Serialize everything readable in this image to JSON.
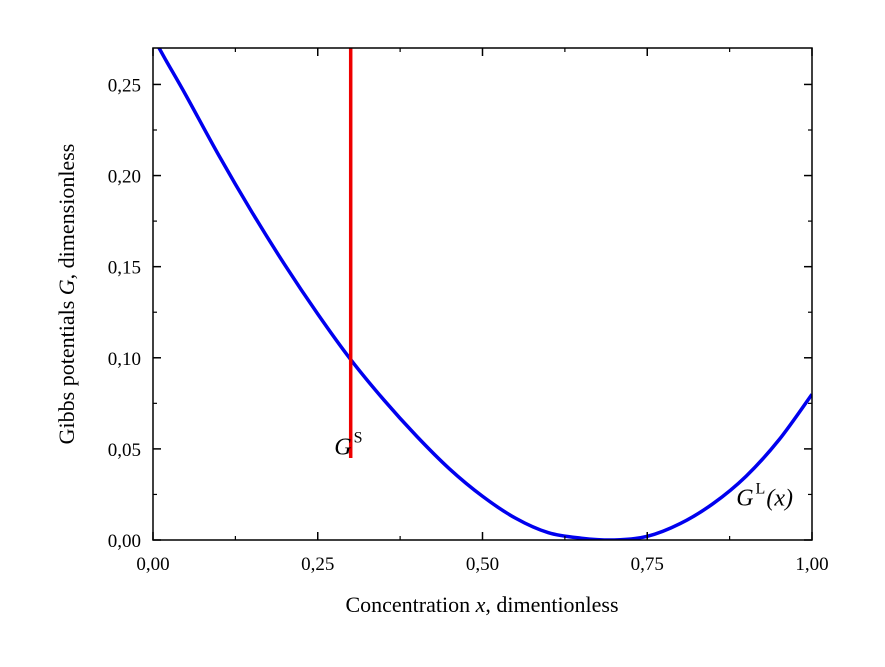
{
  "chart_data": {
    "type": "line",
    "title": "",
    "xlabel": {
      "prefix": "Concentration ",
      "var": "x",
      "suffix": ", dimentionless"
    },
    "ylabel": {
      "prefix": "Gibbs potentials ",
      "var": "G",
      "suffix": ", dimensionless"
    },
    "xlim": [
      0,
      1
    ],
    "ylim": [
      0,
      0.27
    ],
    "x_ticks": [
      {
        "value": 0,
        "label": "0,00"
      },
      {
        "value": 0.25,
        "label": "0,25"
      },
      {
        "value": 0.5,
        "label": "0,50"
      },
      {
        "value": 0.75,
        "label": "0,75"
      },
      {
        "value": 1,
        "label": "1,00"
      }
    ],
    "y_ticks": [
      {
        "value": 0,
        "label": "0,00"
      },
      {
        "value": 0.05,
        "label": "0,05"
      },
      {
        "value": 0.1,
        "label": "0,10"
      },
      {
        "value": 0.15,
        "label": "0,15"
      },
      {
        "value": 0.2,
        "label": "0,20"
      },
      {
        "value": 0.25,
        "label": "0,25"
      }
    ],
    "grid": false,
    "series": [
      {
        "color": "#0000ee",
        "x": [
          0.0,
          0.02,
          0.05,
          0.1,
          0.15,
          0.2,
          0.25,
          0.3,
          0.35,
          0.4,
          0.45,
          0.5,
          0.55,
          0.6,
          0.65,
          0.7,
          0.75,
          0.8,
          0.85,
          0.9,
          0.95,
          1.0
        ],
        "y": [
          0.276,
          0.263,
          0.244,
          0.211,
          0.18,
          0.151,
          0.124,
          0.099,
          0.077,
          0.057,
          0.039,
          0.024,
          0.012,
          0.004,
          0.001,
          0.0,
          0.002,
          0.009,
          0.02,
          0.035,
          0.055,
          0.08
        ]
      },
      {
        "color": "#ee0000",
        "x": [
          0.3,
          0.3
        ],
        "y": [
          0.045,
          0.27
        ]
      }
    ],
    "annotations": [
      {
        "base": "G",
        "sup": "S",
        "rest": "",
        "x": 0.275,
        "y": 0.047
      },
      {
        "base": "G",
        "sup": "L",
        "rest": "(x)",
        "x": 0.885,
        "y": 0.019
      }
    ]
  }
}
